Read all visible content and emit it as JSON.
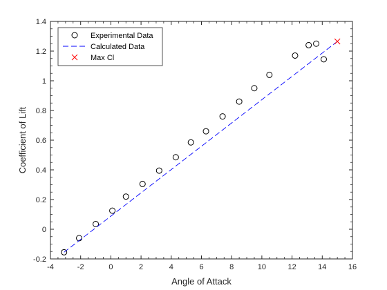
{
  "chart_data": {
    "type": "scatter",
    "xlabel": "Angle of Attack",
    "ylabel": "Coefficient of Lift",
    "xlim": [
      -4,
      16
    ],
    "ylim": [
      -0.2,
      1.4
    ],
    "xticks": [
      -4,
      -2,
      0,
      2,
      4,
      6,
      8,
      10,
      12,
      14,
      16
    ],
    "yticks": [
      -0.2,
      0,
      0.2,
      0.4,
      0.6,
      0.8,
      1,
      1.2,
      1.4
    ],
    "grid": false,
    "legend": "top-left",
    "series": [
      {
        "name": "Experimental Data",
        "kind": "markers",
        "marker": "circle",
        "color": "#000000",
        "x": [
          -3.1,
          -2.1,
          -1.0,
          0.1,
          1.0,
          2.1,
          3.2,
          4.3,
          5.3,
          6.3,
          7.4,
          8.5,
          9.5,
          10.5,
          12.2,
          13.1,
          13.6,
          14.1
        ],
        "y": [
          -0.155,
          -0.06,
          0.035,
          0.125,
          0.22,
          0.305,
          0.395,
          0.485,
          0.585,
          0.66,
          0.76,
          0.86,
          0.95,
          1.04,
          1.17,
          1.24,
          1.25,
          1.145
        ]
      },
      {
        "name": "Calculated Data",
        "kind": "line",
        "dash": "dashed",
        "color": "#0000ff",
        "x": [
          -3.1,
          15.0
        ],
        "y": [
          -0.155,
          1.265
        ]
      },
      {
        "name": "Max Cl",
        "kind": "markers",
        "marker": "x",
        "color": "#ff0000",
        "x": [
          15.0
        ],
        "y": [
          1.265
        ]
      }
    ]
  }
}
